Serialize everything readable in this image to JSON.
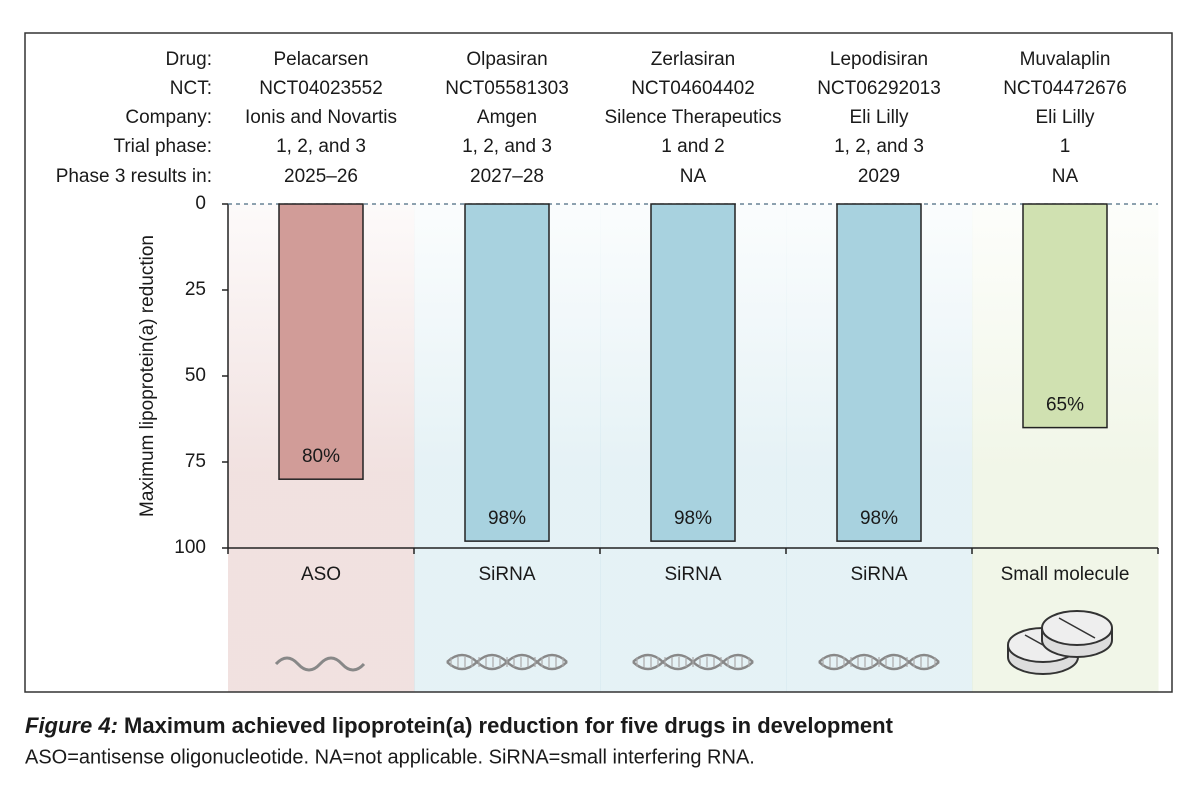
{
  "chart_data": {
    "type": "bar",
    "ylabel": "Maximum lipoprotein(a) reduction",
    "row_labels": [
      "Drug:",
      "NCT:",
      "Company:",
      "Trial phase:",
      "Phase 3 results in:"
    ],
    "categories": [
      "Pelacarsen",
      "Olpasiran",
      "Zerlasiran",
      "Lepodisiran",
      "Muvalaplin"
    ],
    "nct": [
      "NCT04023552",
      "NCT05581303",
      "NCT04604402",
      "NCT06292013",
      "NCT04472676"
    ],
    "company": [
      "Ionis and Novartis",
      "Amgen",
      "Silence Therapeutics",
      "Eli Lilly",
      "Eli Lilly"
    ],
    "trial_phase": [
      "1, 2, and 3",
      "1, 2, and 3",
      "1 and 2",
      "1, 2, and 3",
      "1"
    ],
    "phase3_results": [
      "2025–26",
      "2027–28",
      "NA",
      "2029",
      "NA"
    ],
    "values": [
      80,
      98,
      98,
      98,
      65
    ],
    "value_labels": [
      "80%",
      "98%",
      "98%",
      "98%",
      "65%"
    ],
    "colors": [
      "#d19c98",
      "#a8d2df",
      "#a8d2df",
      "#a8d2df",
      "#d0e1b1"
    ],
    "drug_class": [
      "ASO",
      "SiRNA",
      "SiRNA",
      "SiRNA",
      "Small molecule"
    ],
    "ylim": [
      0,
      100
    ],
    "yticks": [
      0,
      25,
      50,
      75,
      100
    ],
    "inverted": true
  },
  "caption": {
    "figure_label": "Figure 4:",
    "title": "Maximum achieved lipoprotein(a) reduction for five drugs in development",
    "note": "ASO=antisense oligonucleotide. NA=not applicable. SiRNA=small interfering RNA."
  }
}
